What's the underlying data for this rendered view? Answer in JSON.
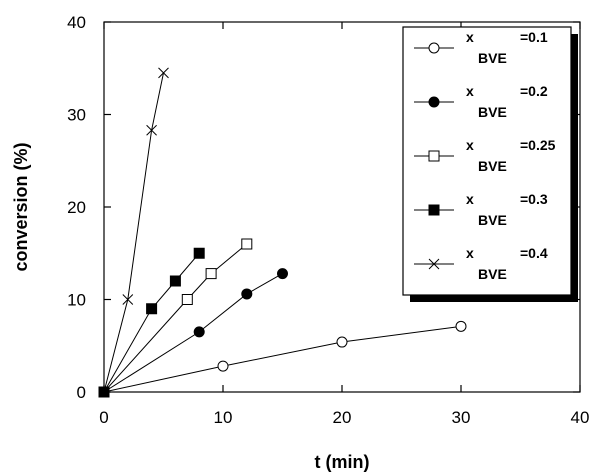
{
  "chart_data": {
    "type": "scatter",
    "xlabel": "t (min)",
    "ylabel": "conversion (%)",
    "xlim": [
      0,
      40
    ],
    "ylim": [
      0,
      40
    ],
    "xticks": [
      "0",
      "10",
      "20",
      "30",
      "40"
    ],
    "yticks": [
      "0",
      "10",
      "20",
      "30",
      "40"
    ],
    "grid": false,
    "legend_position": "top-right",
    "series": [
      {
        "name": "x BVE =0.1",
        "label_main": "x",
        "label_sub": "BVE",
        "label_value": "=0.1",
        "marker": "open-circle",
        "x": [
          0,
          10,
          20,
          30
        ],
        "y": [
          0,
          2.8,
          5.4,
          7.1
        ]
      },
      {
        "name": "x BVE =0.2",
        "label_main": "x",
        "label_sub": "BVE",
        "label_value": "=0.2",
        "marker": "filled-circle",
        "x": [
          0,
          8,
          12,
          15
        ],
        "y": [
          0,
          6.5,
          10.6,
          12.8
        ]
      },
      {
        "name": "x BVE =0.25",
        "label_main": "x",
        "label_sub": "BVE",
        "label_value": "=0.25",
        "marker": "open-square",
        "x": [
          0,
          7,
          9,
          12
        ],
        "y": [
          0,
          10,
          12.8,
          16
        ]
      },
      {
        "name": "x BVE =0.3",
        "label_main": "x",
        "label_sub": "BVE",
        "label_value": "=0.3",
        "marker": "filled-square",
        "x": [
          0,
          4,
          6,
          8
        ],
        "y": [
          0,
          9,
          12,
          15
        ]
      },
      {
        "name": "x BVE =0.4",
        "label_main": "x",
        "label_sub": "BVE",
        "label_value": "=0.4",
        "marker": "x-cross",
        "x": [
          0,
          2,
          4,
          5
        ],
        "y": [
          0,
          10,
          28.3,
          34.5
        ]
      }
    ]
  }
}
